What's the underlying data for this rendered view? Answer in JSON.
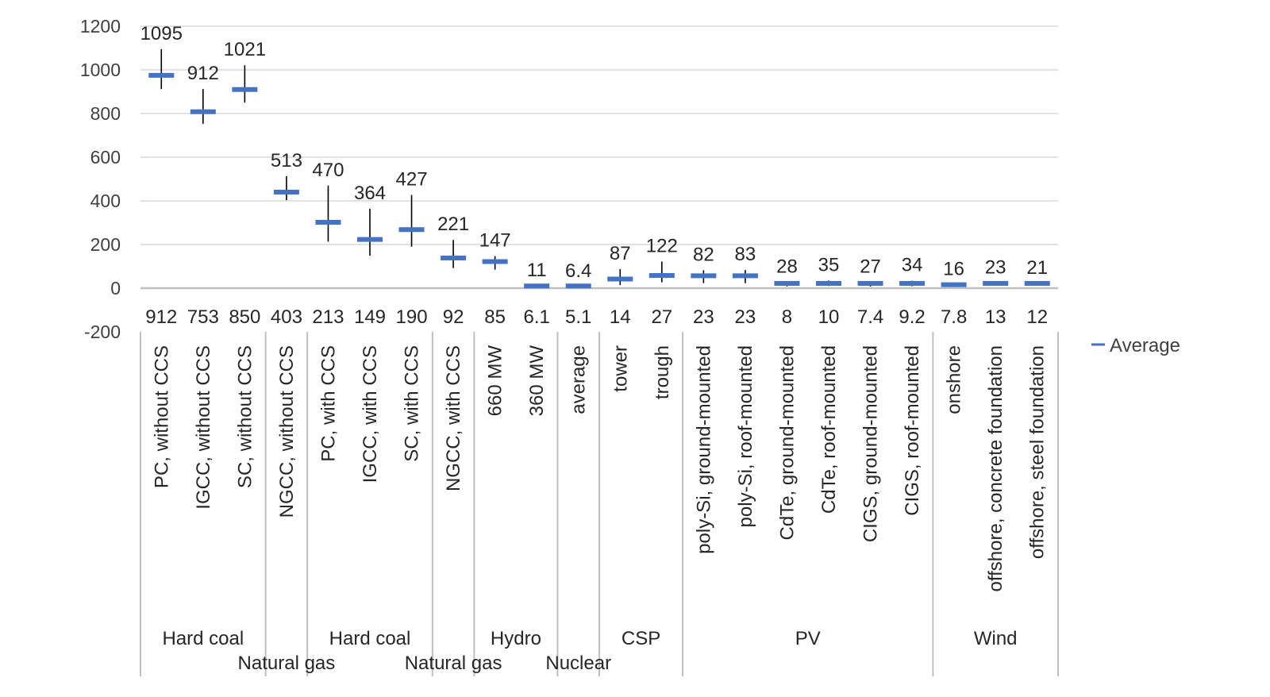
{
  "chart_data": {
    "type": "scatter",
    "ylim": [
      -200,
      1200
    ],
    "y_ticks": [
      "1200",
      "1000",
      "800",
      "600",
      "400",
      "200",
      "0",
      "-200"
    ],
    "y_tick_values": [
      1200,
      1000,
      800,
      600,
      400,
      200,
      0,
      -200
    ],
    "grid": true,
    "legend": {
      "position": "right",
      "label": "Average"
    },
    "colors": {
      "average": "#4472c4",
      "range": "#000000",
      "grid": "#d9d9d9",
      "axis": "#bfbfbf"
    },
    "series": [
      {
        "name": "Average",
        "values": [
          975,
          808,
          910,
          440,
          302,
          223,
          268,
          138,
          122,
          10,
          10,
          42,
          58,
          57,
          57,
          22,
          22,
          22,
          22,
          16,
          22,
          22
        ]
      }
    ],
    "categories": [
      "PC, without CCS",
      "IGCC, without CCS",
      "SC, without CCS",
      "NGCC, without CCS",
      "PC, with CCS",
      "IGCC, with CCS",
      "SC, with CCS",
      "NGCC, with CCS",
      "660 MW",
      "360 MW",
      "average",
      "tower",
      "trough",
      "poly-Si, ground-mounted",
      "poly-Si, roof-mounted",
      "CdTe, ground-mounted",
      "CdTe, roof-mounted",
      "CIGS, ground-mounted",
      "CIGS, roof-mounted",
      "onshore",
      "offshore, concrete foundation",
      "offshore, steel foundation"
    ],
    "max": [
      1095,
      912,
      1021,
      513,
      470,
      364,
      427,
      221,
      147,
      11,
      6.4,
      87,
      122,
      82,
      83,
      28,
      35,
      27,
      34,
      16,
      23,
      21
    ],
    "min": [
      912,
      753,
      850,
      403,
      213,
      149,
      190,
      92,
      85,
      6.1,
      5.1,
      14,
      27,
      23,
      23,
      8,
      10,
      7.4,
      9.2,
      7.8,
      13,
      12
    ],
    "max_labels": [
      "1095",
      "912",
      "1021",
      "513",
      "470",
      "364",
      "427",
      "221",
      "147",
      "11",
      "6.4",
      "87",
      "122",
      "82",
      "83",
      "28",
      "35",
      "27",
      "34",
      "16",
      "23",
      "21"
    ],
    "min_labels": [
      "912",
      "753",
      "850",
      "403",
      "213",
      "149",
      "190",
      "92",
      "85",
      "6.1",
      "5.1",
      "14",
      "27",
      "23",
      "23",
      "8",
      "10",
      "7.4",
      "9.2",
      "7.8",
      "13",
      "12"
    ],
    "groups": [
      {
        "label": "Hard coal",
        "start": 0,
        "count": 3,
        "row": 1
      },
      {
        "label": "Natural gas",
        "start": 3,
        "count": 1,
        "row": 2
      },
      {
        "label": "Hard coal",
        "start": 4,
        "count": 3,
        "row": 1
      },
      {
        "label": "Natural gas",
        "start": 7,
        "count": 1,
        "row": 2
      },
      {
        "label": "Hydro",
        "start": 8,
        "count": 2,
        "row": 1
      },
      {
        "label": "Nuclear",
        "start": 10,
        "count": 1,
        "row": 2
      },
      {
        "label": "CSP",
        "start": 11,
        "count": 2,
        "row": 1
      },
      {
        "label": "PV",
        "start": 13,
        "count": 6,
        "row": 1
      },
      {
        "label": "Wind",
        "start": 19,
        "count": 3,
        "row": 1
      }
    ]
  }
}
